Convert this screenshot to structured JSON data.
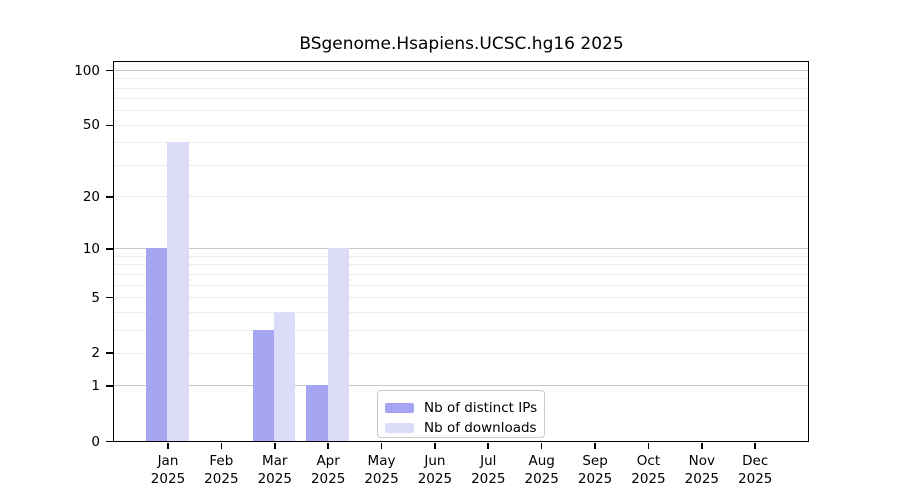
{
  "chart_data": {
    "type": "bar",
    "title": "BSgenome.Hsapiens.UCSC.hg16 2025",
    "categories": [
      "Jan 2025",
      "Feb 2025",
      "Mar 2025",
      "Apr 2025",
      "May 2025",
      "Jun 2025",
      "Jul 2025",
      "Aug 2025",
      "Sep 2025",
      "Oct 2025",
      "Nov 2025",
      "Dec 2025"
    ],
    "series": [
      {
        "name": "Nb of distinct IPs",
        "color": "#a5a5f2",
        "values": [
          10,
          0,
          3,
          1,
          0,
          0,
          0,
          0,
          0,
          0,
          0,
          0
        ]
      },
      {
        "name": "Nb of downloads",
        "color": "#dcdcf8",
        "values": [
          40,
          0,
          4,
          10,
          0,
          0,
          0,
          0,
          0,
          0,
          0,
          0
        ]
      }
    ],
    "yscale": "log1p",
    "yticks": [
      0,
      1,
      2,
      5,
      10,
      20,
      50,
      100
    ],
    "ylim": [
      0,
      110.5
    ],
    "xlabel": "",
    "ylabel": "",
    "grid": true,
    "major_gridlines": [
      1,
      10,
      100
    ],
    "minor_gridlines": [
      2,
      3,
      4,
      5,
      6,
      7,
      8,
      9,
      20,
      30,
      40,
      50,
      60,
      70,
      80,
      90
    ],
    "legend_position": "lower center",
    "colors": {
      "major_grid": "#c6c6c6",
      "minor_grid": "#ececec",
      "spine": "#000000",
      "background": "#ffffff"
    }
  }
}
